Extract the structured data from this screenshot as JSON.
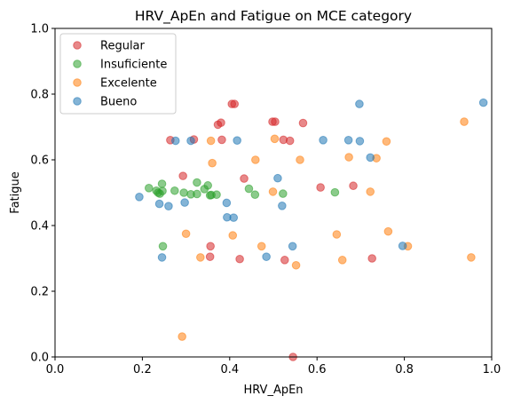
{
  "chart_data": {
    "type": "scatter",
    "title": "HRV_ApEn and Fatigue on MCE category",
    "xlabel": "HRV_ApEn",
    "ylabel": "Fatigue",
    "xlim": [
      0.0,
      1.0
    ],
    "ylim": [
      0.0,
      1.0
    ],
    "xticks": [
      "0.0",
      "0.2",
      "0.4",
      "0.6",
      "0.8",
      "1.0"
    ],
    "yticks": [
      "0.0",
      "0.2",
      "0.4",
      "0.6",
      "0.8",
      "1.0"
    ],
    "grid": false,
    "legend_position": "top-left",
    "marker_opacity": 0.55,
    "series": [
      {
        "name": "Regular",
        "color": "#d62728",
        "points": [
          [
            0.405,
            0.77
          ],
          [
            0.411,
            0.77
          ],
          [
            0.373,
            0.707
          ],
          [
            0.38,
            0.713
          ],
          [
            0.498,
            0.716
          ],
          [
            0.504,
            0.716
          ],
          [
            0.568,
            0.712
          ],
          [
            0.264,
            0.66
          ],
          [
            0.318,
            0.662
          ],
          [
            0.382,
            0.661
          ],
          [
            0.523,
            0.661
          ],
          [
            0.538,
            0.658
          ],
          [
            0.293,
            0.551
          ],
          [
            0.433,
            0.543
          ],
          [
            0.608,
            0.516
          ],
          [
            0.683,
            0.521
          ],
          [
            0.356,
            0.337
          ],
          [
            0.355,
            0.305
          ],
          [
            0.423,
            0.298
          ],
          [
            0.526,
            0.295
          ],
          [
            0.726,
            0.3
          ],
          [
            0.545,
            0.0
          ]
        ]
      },
      {
        "name": "Insuficiente",
        "color": "#2ca02c",
        "points": [
          [
            0.215,
            0.514
          ],
          [
            0.232,
            0.506
          ],
          [
            0.245,
            0.527
          ],
          [
            0.236,
            0.5
          ],
          [
            0.246,
            0.505
          ],
          [
            0.24,
            0.497
          ],
          [
            0.274,
            0.506
          ],
          [
            0.295,
            0.5
          ],
          [
            0.311,
            0.495
          ],
          [
            0.325,
            0.496
          ],
          [
            0.325,
            0.531
          ],
          [
            0.342,
            0.511
          ],
          [
            0.35,
            0.522
          ],
          [
            0.355,
            0.492
          ],
          [
            0.358,
            0.493
          ],
          [
            0.37,
            0.494
          ],
          [
            0.444,
            0.512
          ],
          [
            0.458,
            0.494
          ],
          [
            0.522,
            0.497
          ],
          [
            0.641,
            0.501
          ],
          [
            0.247,
            0.337
          ]
        ]
      },
      {
        "name": "Excelente",
        "color": "#ff7f0e",
        "points": [
          [
            0.357,
            0.658
          ],
          [
            0.503,
            0.664
          ],
          [
            0.759,
            0.656
          ],
          [
            0.36,
            0.59
          ],
          [
            0.459,
            0.6
          ],
          [
            0.561,
            0.6
          ],
          [
            0.673,
            0.608
          ],
          [
            0.736,
            0.605
          ],
          [
            0.937,
            0.716
          ],
          [
            0.499,
            0.503
          ],
          [
            0.722,
            0.503
          ],
          [
            0.3,
            0.375
          ],
          [
            0.407,
            0.37
          ],
          [
            0.645,
            0.373
          ],
          [
            0.763,
            0.382
          ],
          [
            0.473,
            0.337
          ],
          [
            0.808,
            0.337
          ],
          [
            0.333,
            0.303
          ],
          [
            0.552,
            0.279
          ],
          [
            0.658,
            0.295
          ],
          [
            0.953,
            0.303
          ],
          [
            0.291,
            0.062
          ]
        ]
      },
      {
        "name": "Bueno",
        "color": "#1f77b4",
        "points": [
          [
            0.276,
            0.658
          ],
          [
            0.311,
            0.658
          ],
          [
            0.417,
            0.659
          ],
          [
            0.614,
            0.66
          ],
          [
            0.672,
            0.66
          ],
          [
            0.698,
            0.657
          ],
          [
            0.697,
            0.77
          ],
          [
            0.981,
            0.774
          ],
          [
            0.722,
            0.607
          ],
          [
            0.51,
            0.544
          ],
          [
            0.193,
            0.487
          ],
          [
            0.239,
            0.466
          ],
          [
            0.26,
            0.459
          ],
          [
            0.297,
            0.47
          ],
          [
            0.393,
            0.469
          ],
          [
            0.52,
            0.46
          ],
          [
            0.394,
            0.425
          ],
          [
            0.409,
            0.424
          ],
          [
            0.544,
            0.337
          ],
          [
            0.796,
            0.338
          ],
          [
            0.245,
            0.303
          ],
          [
            0.484,
            0.305
          ]
        ]
      }
    ]
  }
}
